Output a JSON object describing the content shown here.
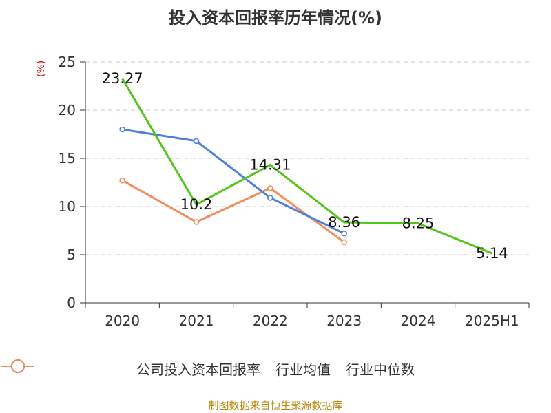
{
  "chart_data": {
    "type": "line",
    "title": "投入资本回报率历年情况(%)",
    "ylabel": "(%)",
    "categories": [
      "2020",
      "2021",
      "2022",
      "2023",
      "2024",
      "2025H1"
    ],
    "ylim": [
      0,
      25
    ],
    "yticks": [
      0,
      5,
      10,
      15,
      20,
      25
    ],
    "grid": true,
    "legend_position": "bottom",
    "series": [
      {
        "name": "公司投入资本回报率",
        "color": "#52c41a",
        "values": [
          23.27,
          10.2,
          14.31,
          8.36,
          8.25,
          5.14
        ],
        "labels": [
          "23.27",
          "10.2",
          "14.31",
          "8.36",
          "8.25",
          "5.14"
        ]
      },
      {
        "name": "行业均值",
        "color": "#4e7fdc",
        "values": [
          18.0,
          16.8,
          10.9,
          7.2,
          null,
          null
        ]
      },
      {
        "name": "行业中位数",
        "color": "#f28c5a",
        "values": [
          12.7,
          8.4,
          11.9,
          6.3,
          null,
          null
        ]
      }
    ]
  },
  "footer": "制图数据来自恒生聚源数据库"
}
